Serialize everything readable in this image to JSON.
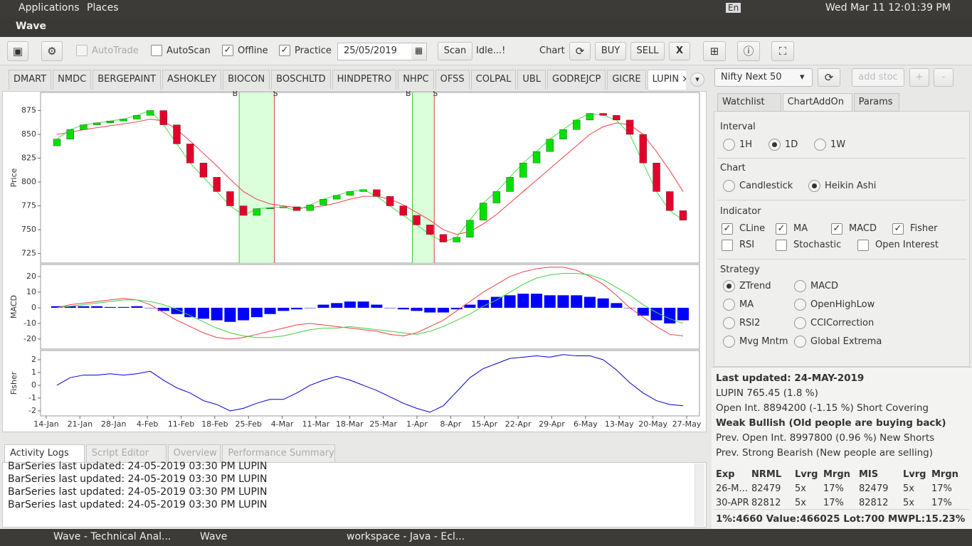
{
  "system_bar": {
    "applications": "Applications",
    "places": "Places",
    "keyboard": "En",
    "clock": "Wed Mar 11 12:01:39 PM"
  },
  "window": {
    "title": "Wave"
  },
  "toolbar": {
    "checks": [
      {
        "label": "AutoTrade",
        "checked": false,
        "enabled": false
      },
      {
        "label": "AutoScan",
        "checked": false,
        "enabled": true
      },
      {
        "label": "Offline",
        "checked": true,
        "enabled": true
      },
      {
        "label": "Practice",
        "checked": true,
        "enabled": true
      }
    ],
    "date": "25/05/2019",
    "scan": "Scan",
    "status": "Idle...!",
    "chart": "Chart",
    "buy": "BUY",
    "sell": "SELL",
    "close": "X"
  },
  "stock_tabs": {
    "items": [
      "DMART",
      "NMDC",
      "BERGEPAINT",
      "ASHOKLEY",
      "BIOCON",
      "BOSCHLTD",
      "HINDPETRO",
      "NHPC",
      "OFSS",
      "COLPAL",
      "UBL",
      "GODREJCP",
      "GICRE",
      "LUPIN"
    ],
    "selected": 13
  },
  "chart_data": [
    {
      "type": "candlestick",
      "ylabel": "Price",
      "ylim": [
        715,
        894
      ],
      "yticks": [
        725,
        750,
        775,
        800,
        825,
        850,
        875
      ],
      "up_color": "#00e000",
      "down_color": "#e4002b",
      "ma_color": "#f04040",
      "close_line_color": "#40e040",
      "open": [
        838,
        845,
        855,
        860,
        862,
        864,
        866,
        870,
        875,
        860,
        840,
        820,
        805,
        790,
        775,
        765,
        772,
        773,
        774,
        770,
        776,
        782,
        786,
        790,
        792,
        785,
        775,
        765,
        755,
        745,
        737,
        742,
        760,
        778,
        790,
        805,
        820,
        832,
        845,
        855,
        865,
        872,
        870,
        865,
        850,
        820,
        790,
        770
      ],
      "close": [
        845,
        855,
        860,
        862,
        864,
        866,
        870,
        875,
        860,
        840,
        820,
        805,
        790,
        775,
        765,
        772,
        773,
        774,
        770,
        776,
        782,
        786,
        790,
        792,
        785,
        775,
        765,
        755,
        745,
        737,
        742,
        760,
        778,
        790,
        805,
        820,
        832,
        845,
        855,
        865,
        872,
        870,
        865,
        850,
        820,
        790,
        770,
        760
      ],
      "ma": [
        850,
        852,
        855,
        857,
        859,
        861,
        863,
        866,
        864,
        855,
        843,
        830,
        817,
        803,
        790,
        782,
        777,
        775,
        773,
        773,
        775,
        778,
        782,
        785,
        785,
        782,
        776,
        768,
        760,
        750,
        745,
        748,
        756,
        766,
        778,
        790,
        802,
        814,
        826,
        838,
        850,
        858,
        862,
        860,
        850,
        832,
        812,
        790
      ],
      "signals": [
        {
          "buy": "B",
          "sell": "S",
          "from": 14,
          "to": 16
        },
        {
          "buy": "B",
          "sell": "S",
          "from": 27,
          "to": 28
        }
      ]
    },
    {
      "type": "macd",
      "ylabel": "MACD",
      "ylim": [
        -26.4,
        27.7
      ],
      "yticks": [
        -20,
        -10,
        0,
        10,
        20
      ],
      "hist_color": "#0000ff",
      "macd_color": "#f04040",
      "signal_color": "#40d040",
      "histogram": [
        1,
        1,
        1,
        1,
        0.5,
        0.5,
        1,
        0,
        -2,
        -4,
        -6,
        -7,
        -8,
        -9,
        -8,
        -6,
        -4,
        -2,
        -1,
        0,
        2,
        3,
        4,
        4,
        2,
        0,
        -1,
        -2,
        -3,
        -3,
        -1,
        2,
        5,
        7,
        8,
        9,
        9,
        8,
        8,
        8,
        7,
        6,
        3,
        0,
        -5,
        -8,
        -10,
        -8
      ],
      "macd": [
        0,
        2,
        3,
        4,
        5,
        6,
        5,
        2,
        -3,
        -8,
        -12,
        -16,
        -19,
        -20,
        -19,
        -17,
        -15,
        -13,
        -11,
        -10,
        -11,
        -12,
        -13,
        -14,
        -15,
        -17,
        -18,
        -16,
        -12,
        -8,
        -2,
        4,
        10,
        15,
        20,
        23,
        25,
        26,
        26,
        24,
        20,
        15,
        8,
        0,
        -6,
        -12,
        -17,
        -18
      ],
      "signal": [
        0,
        1,
        2,
        3,
        4,
        5,
        5,
        4,
        2,
        -1,
        -5,
        -9,
        -13,
        -16,
        -18,
        -19,
        -19,
        -18,
        -16,
        -14,
        -13,
        -13,
        -12,
        -13,
        -14,
        -15,
        -16,
        -17,
        -15,
        -12,
        -8,
        -4,
        1,
        5,
        10,
        15,
        19,
        21,
        22,
        22,
        21,
        18,
        13,
        8,
        2,
        -3,
        -7,
        -10
      ]
    },
    {
      "type": "line",
      "ylabel": "Fisher",
      "ylim": [
        -2.39,
        2.72
      ],
      "yticks": [
        -2,
        -1,
        0,
        1,
        2
      ],
      "color": "#0000cc",
      "values": [
        0,
        0.6,
        0.8,
        0.8,
        0.9,
        0.8,
        0.9,
        1.1,
        0.4,
        -0.2,
        -0.6,
        -1.2,
        -1.5,
        -2,
        -1.8,
        -1.4,
        -1.1,
        -1.1,
        -0.6,
        0,
        0.4,
        0.7,
        0.4,
        0,
        -0.4,
        -0.9,
        -1.4,
        -1.8,
        -2.1,
        -1.6,
        -0.5,
        0.6,
        1.3,
        1.7,
        2.1,
        2.2,
        2.3,
        2.2,
        2.4,
        2.3,
        2.3,
        2.0,
        1.2,
        0.2,
        -0.6,
        -1.2,
        -1.5,
        -1.6
      ],
      "x_labels": [
        "14-Jan",
        "21-Jan",
        "28-Jan",
        "4-Feb",
        "11-Feb",
        "18-Feb",
        "25-Feb",
        "4-Mar",
        "11-Mar",
        "18-Mar",
        "25-Mar",
        "1-Apr",
        "8-Apr",
        "15-Apr",
        "22-Apr",
        "29-Apr",
        "6-May",
        "13-May",
        "20-May",
        "27-May"
      ]
    }
  ],
  "bottom_tabs": {
    "items": [
      "Activity Logs",
      "Script Editor",
      "Overview",
      "Performance Summary"
    ],
    "selected": 0
  },
  "log_lines": [
    "BarSeries last updated: 24-05-2019 03:30 PM LUPIN",
    "BarSeries last updated: 24-05-2019 03:30 PM LUPIN",
    "BarSeries last updated: 24-05-2019 03:30 PM LUPIN",
    "BarSeries last updated: 24-05-2019 03:30 PM LUPIN"
  ],
  "right_panel": {
    "index": "Nifty Next 50",
    "add_stock": "add stoc",
    "plus": "+",
    "minus": "-",
    "tabs": {
      "items": [
        "Watchlist",
        "ChartAddOn",
        "Params"
      ],
      "selected": 1
    },
    "interval": {
      "title": "Interval",
      "options": [
        "1H",
        "1D",
        "1W"
      ],
      "selected": 1
    },
    "chart": {
      "title": "Chart",
      "options": [
        "Candlestick",
        "Heikin Ashi"
      ],
      "selected": 1
    },
    "indicator": {
      "title": "Indicator",
      "items": [
        {
          "label": "CLine",
          "checked": true
        },
        {
          "label": "MA",
          "checked": true
        },
        {
          "label": "MACD",
          "checked": true
        },
        {
          "label": "Fisher",
          "checked": true
        },
        {
          "label": "RSI",
          "checked": false
        },
        {
          "label": "Stochastic",
          "checked": false
        },
        {
          "label": "Open Interest",
          "checked": false
        }
      ]
    },
    "strategy": {
      "title": "Strategy",
      "options": [
        "ZTrend",
        "MACD",
        "MA",
        "OpenHighLow",
        "RSI2",
        "CCICorrection",
        "Mvg Mntm",
        "Global Extrema"
      ],
      "selected": 0
    },
    "info": [
      {
        "text": "Last updated: 24-MAY-2019",
        "bold": true
      },
      {
        "text": "LUPIN 765.45 (1.8 %)",
        "bold": false
      },
      {
        "text": "Open Int. 8894200 (-1.15 %) Short Covering",
        "bold": false
      },
      {
        "text": "Weak Bullish (Old people are buying back)",
        "bold": true
      },
      {
        "text": "Prev. Open Int. 8997800 (0.96 %) New Shorts",
        "bold": false
      },
      {
        "text": "Prev. Strong Bearish (New people are selling)",
        "bold": false
      }
    ],
    "table": {
      "header": [
        "Exp",
        "NRML",
        "Lvrg",
        "Mrgn",
        "MIS",
        "Lvrg",
        "Mrgn"
      ],
      "rows": [
        [
          "26-M...",
          "82479",
          "5x",
          "17%",
          "82479",
          "5x",
          "17%"
        ],
        [
          "30-APR",
          "82812",
          "5x",
          "17%",
          "82812",
          "5x",
          "17%"
        ]
      ]
    },
    "footer": "1%:4660 Value:466025 Lot:700 MWPL:15.23%"
  },
  "taskbar": [
    "Wave - Technical Anal...",
    "Wave",
    "workspace - Java - Ecl..."
  ]
}
